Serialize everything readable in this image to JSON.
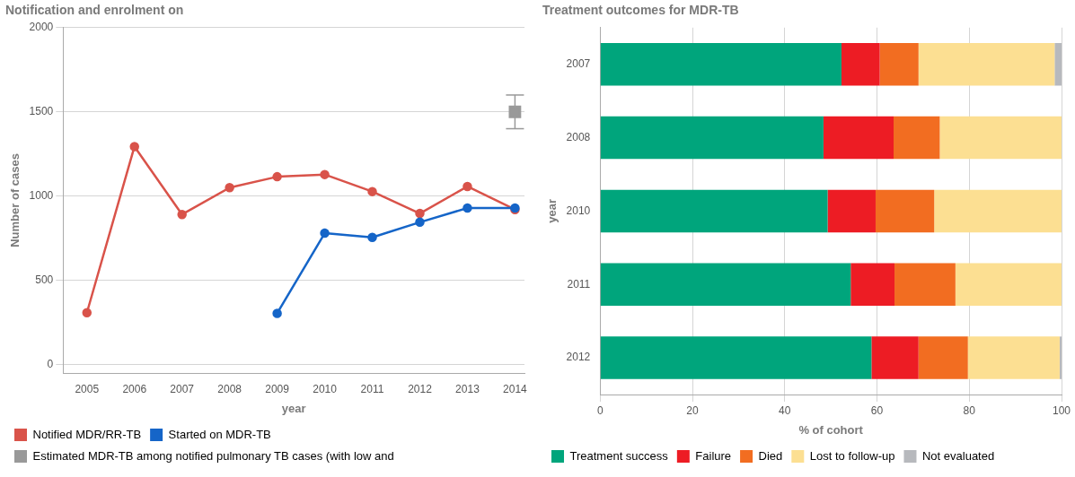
{
  "chart_data": [
    {
      "type": "line",
      "title": "Notification and enrolment on",
      "xlabel": "year",
      "ylabel": "Number of cases",
      "x": [
        2005,
        2006,
        2007,
        2008,
        2009,
        2010,
        2011,
        2012,
        2013,
        2014
      ],
      "xlim": [
        2004.5,
        2014.2
      ],
      "xticks": [
        2005,
        2006,
        2007,
        2008,
        2009,
        2010,
        2011,
        2012,
        2013,
        2014
      ],
      "ylim": [
        -50,
        2000
      ],
      "yticks": [
        0,
        500,
        1000,
        1500,
        2000
      ],
      "grid": "y",
      "legend": "bottom",
      "marker": "circle",
      "line_style": "solid",
      "series": [
        {
          "name": "Notified MDR/RR-TB",
          "color": "#d9534a",
          "values": [
            308,
            1294,
            891,
            1050,
            1115,
            1128,
            1027,
            897,
            1057,
            920
          ]
        },
        {
          "name": "Started on MDR-TB",
          "color": "#1565c8",
          "values": [
            null,
            null,
            null,
            null,
            304,
            780,
            755,
            845,
            929,
            929
          ]
        },
        {
          "name": "Estimated MDR-TB among notified pulmonary TB cases (with low and",
          "type": "scatter",
          "marker": "square",
          "color": "#999999",
          "x": [
            2014
          ],
          "values": [
            1500
          ],
          "errors": [
            [
              1400,
              1600
            ]
          ]
        }
      ]
    },
    {
      "type": "bar",
      "orientation": "horizontal",
      "stacked": true,
      "title": "Treatment outcomes for MDR-TB",
      "xlabel": "% of cohort",
      "ylabel": "year",
      "categories": [
        "2007",
        "2008",
        "2010",
        "2011",
        "2012"
      ],
      "xlim": [
        0,
        100
      ],
      "xticks": [
        0,
        20,
        40,
        60,
        80,
        100
      ],
      "grid": "x",
      "legend": "bottom",
      "series": [
        {
          "name": "Treatment success",
          "color": "#00a57c",
          "values": [
            52.3,
            48.4,
            49.3,
            54.3,
            58.8
          ]
        },
        {
          "name": "Failure",
          "color": "#ed1c24",
          "values": [
            8.3,
            15.2,
            10.4,
            9.5,
            10.2
          ]
        },
        {
          "name": "Died",
          "color": "#f26d21",
          "values": [
            8.4,
            10.0,
            12.7,
            13.2,
            10.7
          ]
        },
        {
          "name": "Lost to follow-up",
          "color": "#fcdf92",
          "values": [
            29.5,
            26.4,
            27.6,
            23.0,
            19.9
          ]
        },
        {
          "name": "Not evaluated",
          "color": "#b7b9bd",
          "values": [
            1.5,
            0,
            0,
            0,
            0.4
          ]
        }
      ]
    }
  ]
}
